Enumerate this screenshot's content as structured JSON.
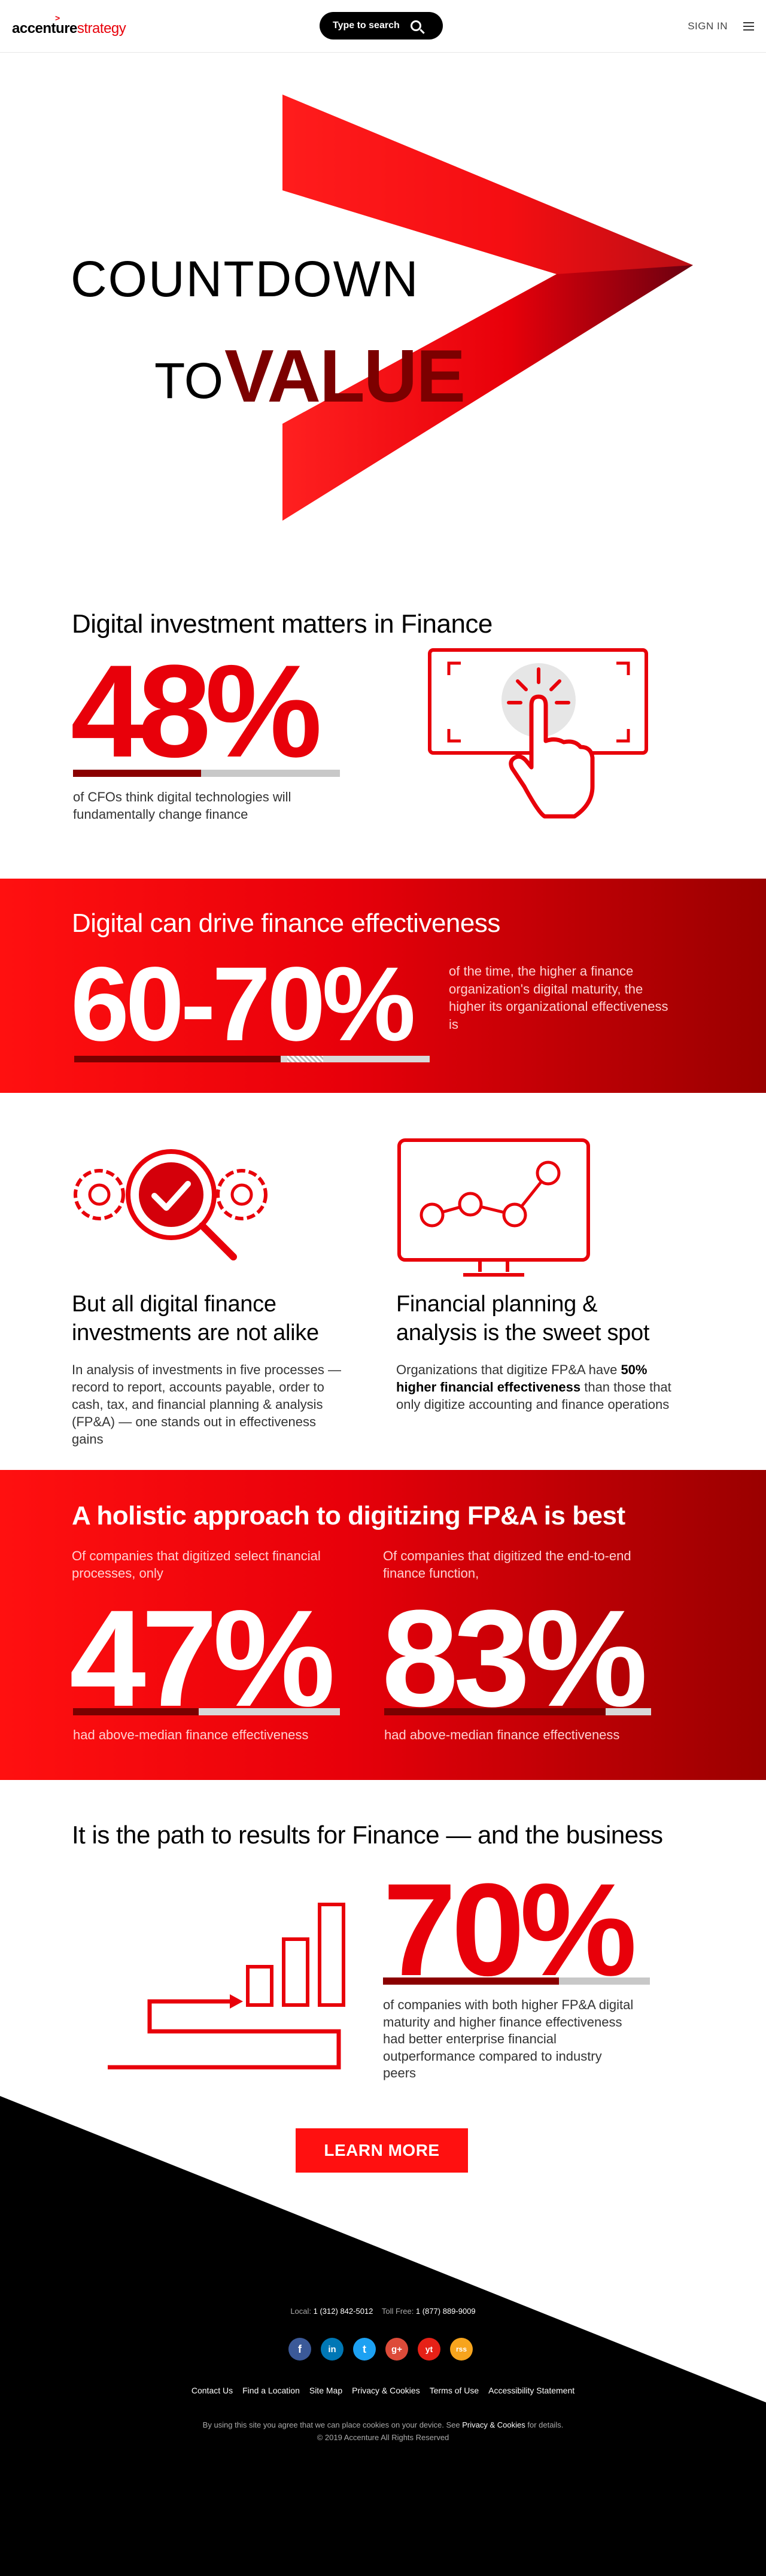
{
  "header": {
    "logo_main": "accenture",
    "logo_sub": "strategy",
    "search_label": "Type to search",
    "sign_in": "SIGN IN"
  },
  "hero": {
    "line1": "COUNTDOWN",
    "line2_to": "TO",
    "line2_value": "VALUE"
  },
  "section1": {
    "title": "Digital investment matters in Finance",
    "stat": "48%",
    "stat_fraction": 0.48,
    "caption": "of CFOs think digital technologies will fundamentally change finance"
  },
  "section2": {
    "title": "Digital can drive finance effectiveness",
    "stat": "60-70%",
    "text": "of the time, the higher a finance organization's digital maturity, the higher its organizational effectiveness is"
  },
  "section3": {
    "left_title": "But all digital finance investments are not alike",
    "left_text": "In analysis of investments in five processes — record to report, accounts payable, order to cash, tax, and financial planning & analysis (FP&A) — one stands out in effectiveness gains",
    "right_title": "Financial planning & analysis is the sweet spot",
    "right_text_a": "Organizations that digitize FP&A have ",
    "right_text_bold": "50% higher financial effectiveness",
    "right_text_b": " than those that only digitize accounting and finance operations"
  },
  "section4": {
    "title": "A holistic approach to digitizing FP&A is best",
    "left_sub": "Of companies that digitized select financial processes, only",
    "left_stat": "47%",
    "left_fraction": 0.47,
    "left_below": "had above-median finance effectiveness",
    "right_sub": "Of companies that digitized the end-to-end finance function,",
    "right_stat": "83%",
    "right_fraction": 0.83,
    "right_below": "had above-median finance effectiveness"
  },
  "section5": {
    "title": "It is the path to results for Finance — and the business",
    "stat": "70%",
    "stat_fraction": 0.7,
    "caption": "of companies with both higher FP&A digital maturity and higher finance effectiveness had better enterprise financial outperformance compared to industry peers",
    "cta": "LEARN MORE"
  },
  "footer": {
    "local_label": "Local: ",
    "local_phone": "1 (312) 842-5012",
    "tollfree_label": "Toll Free: ",
    "tollfree_phone": "1 (877) 889-9009",
    "socials": [
      "f",
      "in",
      "t",
      "g+",
      "yt",
      "rss"
    ],
    "links": [
      "Contact Us",
      "Find a Location",
      "Site Map",
      "Privacy & Cookies",
      "Terms of Use",
      "Accessibility Statement"
    ],
    "cookie_text_a": "By using this site you agree that we can place cookies on your device. See ",
    "cookie_link": "Privacy & Cookies",
    "cookie_text_b": " for details.",
    "copyright": "© 2019 Accenture All Rights Reserved"
  },
  "colors": {
    "accent_red": "#e8000a",
    "dark_red": "#8a0000"
  }
}
